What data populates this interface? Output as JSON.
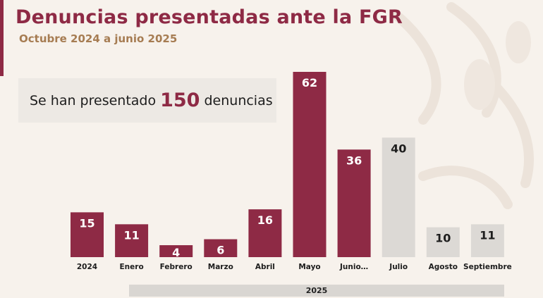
{
  "header": {
    "title": "Denuncias presentadas ante la FGR",
    "subtitle": "Octubre 2024 a junio 2025"
  },
  "summary": {
    "prefix": "Se han presentado",
    "count": "150",
    "suffix": "denuncias"
  },
  "year_band": "2025",
  "colors": {
    "highlight": "#8e2a45",
    "muted": "#dcd9d5",
    "accent": "#a67c52"
  },
  "chart_data": {
    "type": "bar",
    "title": "Denuncias presentadas ante la FGR",
    "subtitle": "Octubre 2024 a junio 2025",
    "categories": [
      "2024",
      "Enero",
      "Febrero",
      "Marzo",
      "Abril",
      "Mayo",
      "Junio…",
      "Julio",
      "Agosto",
      "Septiembre"
    ],
    "values": [
      15,
      11,
      4,
      6,
      16,
      62,
      36,
      40,
      10,
      11
    ],
    "highlighted": [
      true,
      true,
      true,
      true,
      true,
      true,
      true,
      false,
      false,
      false
    ],
    "data_labels": true,
    "ylim": [
      0,
      62
    ],
    "grid": false,
    "legend": "none"
  }
}
